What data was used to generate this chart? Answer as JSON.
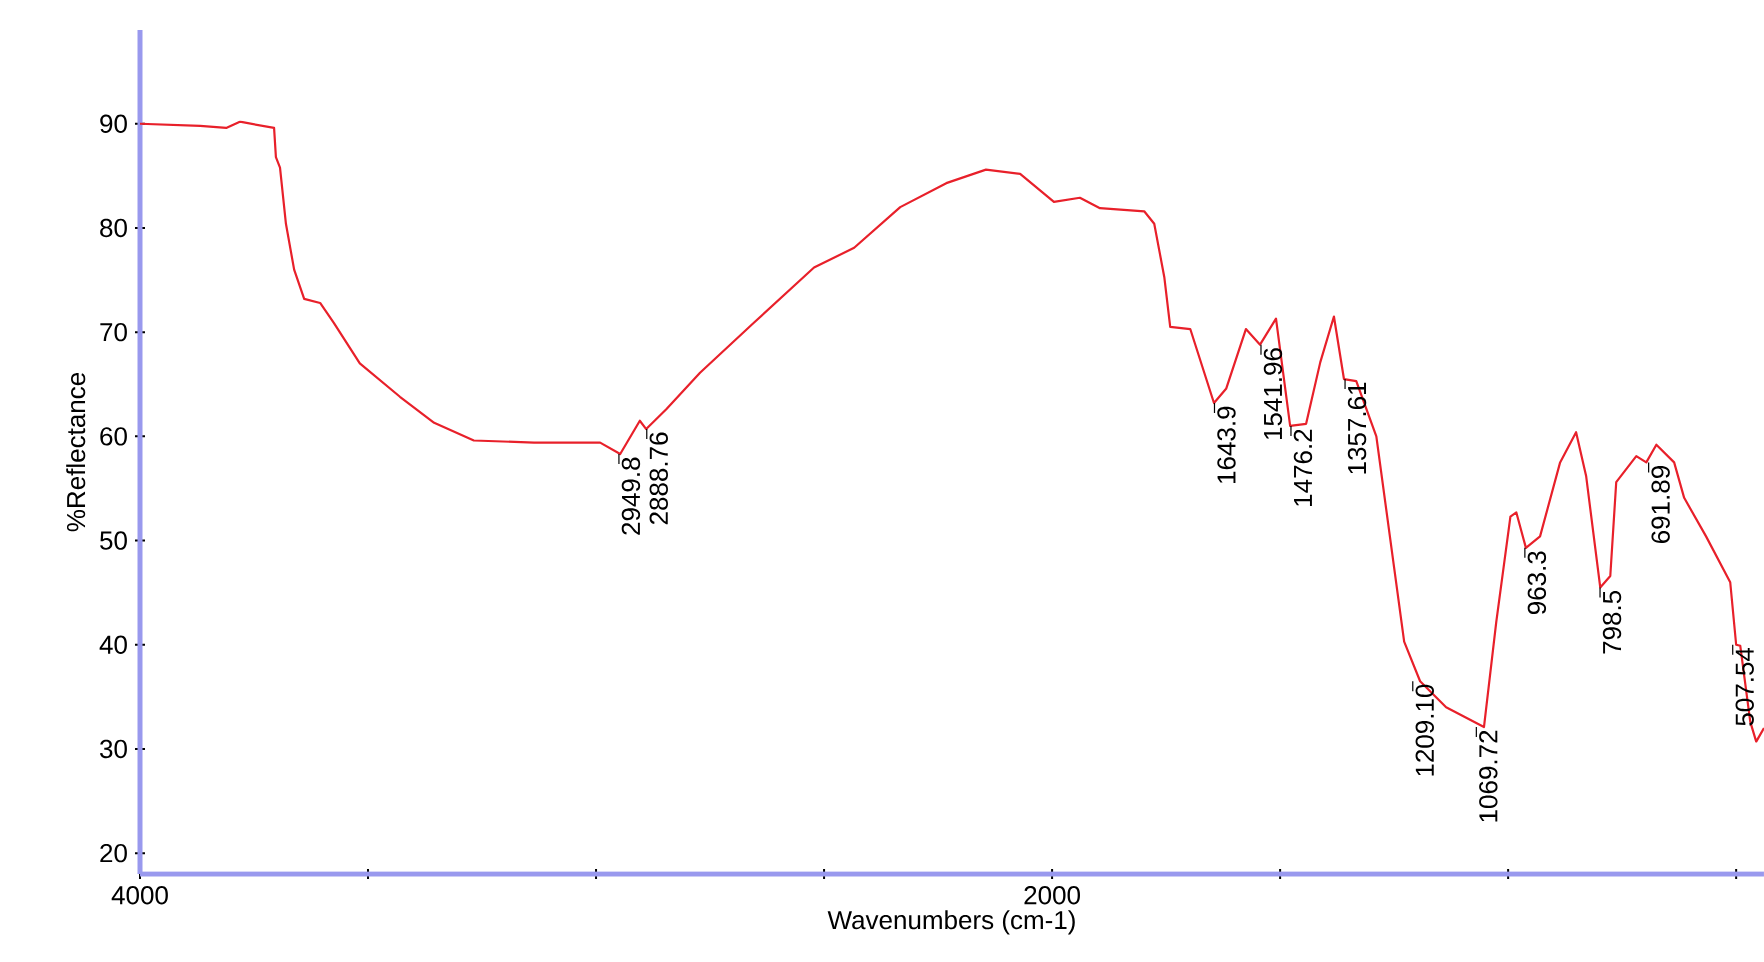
{
  "chart_data": {
    "type": "line",
    "xlabel": "Wavenumbers (cm-1)",
    "ylabel": "%Reflectance",
    "xlim": [
      4000,
      439
    ],
    "ylim": [
      18,
      99
    ],
    "xticks": [
      4000,
      {
        "value": 3500,
        "label": null
      },
      {
        "value": 3000,
        "label": null
      },
      {
        "value": 2500,
        "label": null
      },
      2000,
      {
        "value": 1500,
        "label": null
      },
      {
        "value": 1000,
        "label": null
      },
      {
        "value": 500,
        "label": null
      }
    ],
    "yticks": [
      20,
      30,
      40,
      50,
      60,
      70,
      80,
      90
    ],
    "grid": false,
    "marker": "none",
    "line_style": "solid",
    "series": [
      {
        "color": "#e8202a",
        "x": [
          4000,
          3868,
          3811,
          3781,
          3706,
          3702,
          3693,
          3680,
          3662,
          3640,
          3605,
          3575,
          3518,
          3430,
          3355,
          3268,
          3136,
          2991,
          2947,
          2904,
          2890,
          2846,
          2772,
          2654,
          2522,
          2434,
          2333,
          2232,
          2145,
          2070,
          1996,
          1939,
          1895,
          1798,
          1776,
          1754,
          1741,
          1697,
          1645,
          1618,
          1575,
          1544,
          1509,
          1478,
          1443,
          1412,
          1382,
          1360,
          1333,
          1289,
          1250,
          1228,
          1193,
          1136,
          1053,
          1026,
          995,
          982,
          961,
          930,
          886,
          851,
          829,
          798,
          776,
          763,
          719,
          697,
          675,
          636,
          614,
          566,
          513,
          500,
          491,
          469,
          456,
          439
        ],
        "values": [
          90,
          89.8,
          89.6,
          90.2,
          89.6,
          86.8,
          85.8,
          80.4,
          76,
          73.2,
          72.8,
          70.9,
          67,
          63.8,
          61.3,
          59.6,
          59.4,
          59.4,
          58.3,
          61.5,
          60.7,
          62.6,
          66.1,
          70.9,
          76.2,
          78.1,
          82,
          84.3,
          85.6,
          85.2,
          82.5,
          82.9,
          81.9,
          81.6,
          80.4,
          75.3,
          70.5,
          70.3,
          63.2,
          64.6,
          70.3,
          68.8,
          71.3,
          61,
          61.2,
          67.1,
          71.5,
          65.5,
          65.3,
          60,
          47.4,
          40.3,
          36.5,
          34,
          32.1,
          42.2,
          52.3,
          52.7,
          49.3,
          50.4,
          57.5,
          60.4,
          56.2,
          45.5,
          46.6,
          55.6,
          58.1,
          57.5,
          59.2,
          57.5,
          54.1,
          50.4,
          46,
          40,
          39.9,
          32.6,
          30.7,
          32
        ]
      }
    ],
    "annotations": [
      {
        "text": "2949.8",
        "x": 2949.8,
        "y": 58.3
      },
      {
        "text": "2888.76",
        "x": 2888.76,
        "y": 60.7
      },
      {
        "text": "1643.9",
        "x": 1643.9,
        "y": 63.2
      },
      {
        "text": "1541.96",
        "x": 1541.96,
        "y": 68.8
      },
      {
        "text": "1476.2",
        "x": 1476.2,
        "y": 61
      },
      {
        "text": "1357.61",
        "x": 1357.61,
        "y": 65.5
      },
      {
        "text": "1209.10",
        "x": 1209.1,
        "y": 36.5
      },
      {
        "text": "1069.72",
        "x": 1069.72,
        "y": 32.1
      },
      {
        "text": "963.3",
        "x": 963.3,
        "y": 49.3
      },
      {
        "text": "798.5",
        "x": 798.5,
        "y": 45.5
      },
      {
        "text": "691.89",
        "x": 691.89,
        "y": 57.5
      },
      {
        "text": "507.54",
        "x": 507.54,
        "y": 40
      }
    ]
  }
}
